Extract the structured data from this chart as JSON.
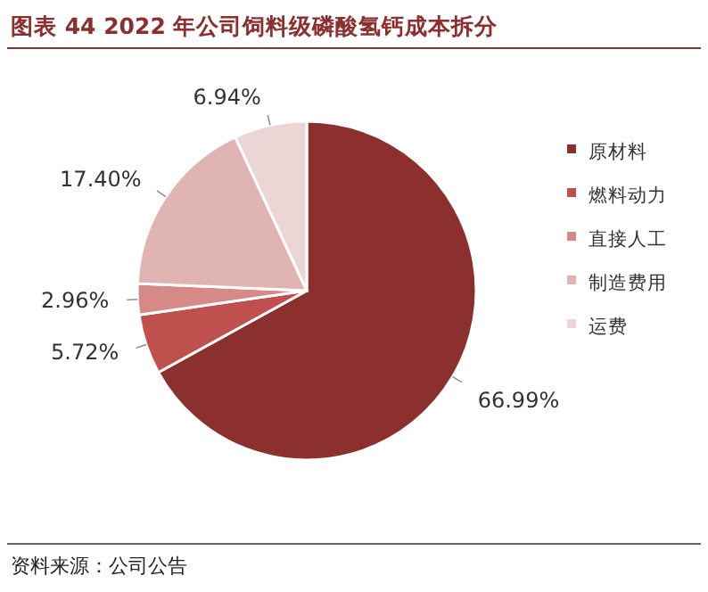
{
  "chart_data": {
    "type": "pie",
    "title": "图表 44 2022 年公司饲料级磷酸氢钙成本拆分",
    "categories": [
      "原材料",
      "燃料动力",
      "直接人工",
      "制造费用",
      "运费"
    ],
    "values": [
      66.99,
      5.72,
      2.96,
      17.4,
      6.94
    ],
    "value_labels": [
      "66.99%",
      "5.72%",
      "2.96%",
      "17.40%",
      "6.94%"
    ],
    "colors": [
      "#8b2f2f",
      "#c0504d",
      "#d68a87",
      "#e0b4b3",
      "#ecd6d5"
    ],
    "legend": "right",
    "annotations": [
      "资料来源：公司公告"
    ]
  }
}
